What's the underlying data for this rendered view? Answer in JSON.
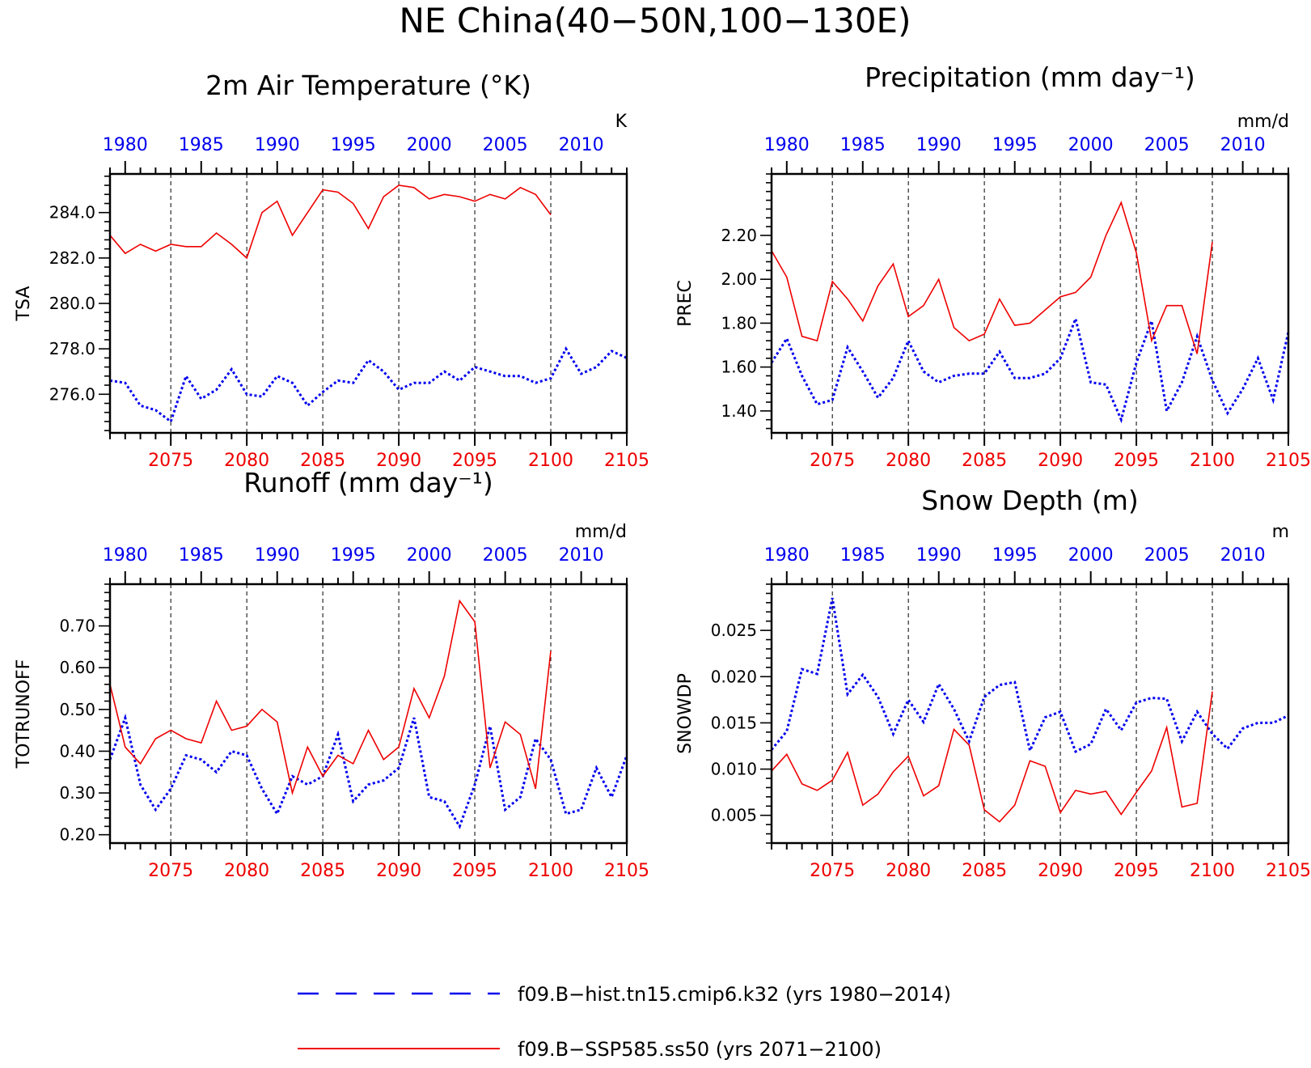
{
  "figure": {
    "title": "NE China(40−50N,100−130E)",
    "legend": {
      "placement": "bottom-center",
      "entries": [
        {
          "label": "f09.B−hist.tn15.cmip6.k32 (yrs 1980−2014)",
          "color": "#0000ee",
          "style": "dashed"
        },
        {
          "label": "f09.B−SSP585.ss50 (yrs 2071−2100)",
          "color": "#ee0000",
          "style": "solid"
        }
      ]
    }
  },
  "chart_data": [
    {
      "type": "line",
      "title": "2m Air Temperature (°K)",
      "ylabel": "TSA",
      "unit": "K",
      "ylim": [
        274.3,
        285.7
      ],
      "yticks": [
        276.0,
        278.0,
        280.0,
        282.0,
        284.0
      ],
      "ytick_labels": [
        "276.0",
        "278.0",
        "280.0",
        "282.0",
        "284.0"
      ],
      "grid": "vertical dashed at major bottom ticks",
      "top_axis": {
        "label_color": "#0000ee",
        "xlim": [
          1979,
          2013
        ],
        "ticks": [
          1980,
          1985,
          1990,
          1995,
          2000,
          2005,
          2010
        ]
      },
      "bottom_axis": {
        "label_color": "#ee0000",
        "xlim": [
          2071,
          2105
        ],
        "ticks": [
          2075,
          2080,
          2085,
          2090,
          2095,
          2100,
          2105
        ]
      },
      "series": [
        {
          "name": "f09.B−hist.tn15.cmip6.k32 (yrs 1980−2014)",
          "axis": "top",
          "color": "#0000ee",
          "style": "dotted",
          "x": [
            1979,
            1980,
            1981,
            1982,
            1983,
            1984,
            1985,
            1986,
            1987,
            1988,
            1989,
            1990,
            1991,
            1992,
            1993,
            1994,
            1995,
            1996,
            1997,
            1998,
            1999,
            2000,
            2001,
            2002,
            2003,
            2004,
            2005,
            2006,
            2007,
            2008,
            2009,
            2010,
            2011,
            2012,
            2013
          ],
          "y": [
            276.6,
            276.5,
            275.5,
            275.3,
            274.8,
            276.8,
            275.8,
            276.2,
            277.1,
            276.0,
            275.9,
            276.8,
            276.5,
            275.5,
            276.1,
            276.6,
            276.5,
            277.5,
            277.0,
            276.2,
            276.5,
            276.5,
            277.0,
            276.6,
            277.2,
            277.0,
            276.8,
            276.8,
            276.5,
            276.7,
            278.0,
            276.9,
            277.2,
            277.9,
            277.6
          ]
        },
        {
          "name": "f09.B−SSP585.ss50 (yrs 2071−2100)",
          "axis": "bottom",
          "color": "#ee0000",
          "style": "solid",
          "x": [
            2071,
            2072,
            2073,
            2074,
            2075,
            2076,
            2077,
            2078,
            2079,
            2080,
            2081,
            2082,
            2083,
            2084,
            2085,
            2086,
            2087,
            2088,
            2089,
            2090,
            2091,
            2092,
            2093,
            2094,
            2095,
            2096,
            2097,
            2098,
            2099,
            2100
          ],
          "y": [
            283.0,
            282.2,
            282.6,
            282.3,
            282.6,
            282.5,
            282.5,
            283.1,
            282.6,
            282.0,
            284.0,
            284.5,
            283.0,
            284.0,
            285.0,
            284.9,
            284.4,
            283.3,
            284.7,
            285.2,
            285.1,
            284.6,
            284.8,
            284.7,
            284.5,
            284.8,
            284.6,
            285.1,
            284.8,
            283.9
          ]
        }
      ]
    },
    {
      "type": "line",
      "title": "Precipitation (mm day⁻¹)",
      "ylabel": "PREC",
      "unit": "mm/d",
      "ylim": [
        1.3,
        2.48
      ],
      "yticks": [
        1.4,
        1.6,
        1.8,
        2.0,
        2.2
      ],
      "ytick_labels": [
        "1.40",
        "1.60",
        "1.80",
        "2.00",
        "2.20"
      ],
      "grid": "vertical dashed at major bottom ticks",
      "top_axis": {
        "label_color": "#0000ee",
        "xlim": [
          1979,
          2013
        ],
        "ticks": [
          1980,
          1985,
          1990,
          1995,
          2000,
          2005,
          2010
        ]
      },
      "bottom_axis": {
        "label_color": "#ee0000",
        "xlim": [
          2071,
          2105
        ],
        "ticks": [
          2075,
          2080,
          2085,
          2090,
          2095,
          2100,
          2105
        ]
      },
      "series": [
        {
          "name": "f09.B−hist.tn15.cmip6.k32 (yrs 1980−2014)",
          "axis": "top",
          "color": "#0000ee",
          "style": "dotted",
          "x": [
            1979,
            1980,
            1981,
            1982,
            1983,
            1984,
            1985,
            1986,
            1987,
            1988,
            1989,
            1990,
            1991,
            1992,
            1993,
            1994,
            1995,
            1996,
            1997,
            1998,
            1999,
            2000,
            2001,
            2002,
            2003,
            2004,
            2005,
            2006,
            2007,
            2008,
            2009,
            2010,
            2011,
            2012,
            2013
          ],
          "y": [
            1.62,
            1.73,
            1.56,
            1.43,
            1.45,
            1.69,
            1.58,
            1.46,
            1.55,
            1.72,
            1.58,
            1.53,
            1.56,
            1.57,
            1.57,
            1.67,
            1.55,
            1.55,
            1.57,
            1.64,
            1.82,
            1.53,
            1.52,
            1.36,
            1.62,
            1.81,
            1.4,
            1.53,
            1.74,
            1.54,
            1.39,
            1.5,
            1.64,
            1.45,
            1.76
          ]
        },
        {
          "name": "f09.B−SSP585.ss50 (yrs 2071−2100)",
          "axis": "bottom",
          "color": "#ee0000",
          "style": "solid",
          "x": [
            2071,
            2072,
            2073,
            2074,
            2075,
            2076,
            2077,
            2078,
            2079,
            2080,
            2081,
            2082,
            2083,
            2084,
            2085,
            2086,
            2087,
            2088,
            2089,
            2090,
            2091,
            2092,
            2093,
            2094,
            2095,
            2096,
            2097,
            2098,
            2099,
            2100
          ],
          "y": [
            2.13,
            2.01,
            1.74,
            1.72,
            1.99,
            1.91,
            1.81,
            1.97,
            2.07,
            1.83,
            1.88,
            2.0,
            1.78,
            1.72,
            1.75,
            1.91,
            1.79,
            1.8,
            1.86,
            1.92,
            1.94,
            2.01,
            2.2,
            2.35,
            2.12,
            1.72,
            1.88,
            1.88,
            1.66,
            2.17
          ]
        }
      ]
    },
    {
      "type": "line",
      "title": "Runoff (mm day⁻¹)",
      "ylabel": "TOTRUNOFF",
      "unit": "mm/d",
      "ylim": [
        0.18,
        0.8
      ],
      "yticks": [
        0.2,
        0.3,
        0.4,
        0.5,
        0.6,
        0.7
      ],
      "ytick_labels": [
        "0.20",
        "0.30",
        "0.40",
        "0.50",
        "0.60",
        "0.70"
      ],
      "grid": "vertical dashed at major bottom ticks",
      "top_axis": {
        "label_color": "#0000ee",
        "xlim": [
          1979,
          2013
        ],
        "ticks": [
          1980,
          1985,
          1990,
          1995,
          2000,
          2005,
          2010
        ]
      },
      "bottom_axis": {
        "label_color": "#ee0000",
        "xlim": [
          2071,
          2105
        ],
        "ticks": [
          2075,
          2080,
          2085,
          2090,
          2095,
          2100,
          2105
        ]
      },
      "series": [
        {
          "name": "f09.B−hist.tn15.cmip6.k32 (yrs 1980−2014)",
          "axis": "top",
          "color": "#0000ee",
          "style": "dotted",
          "x": [
            1979,
            1980,
            1981,
            1982,
            1983,
            1984,
            1985,
            1986,
            1987,
            1988,
            1989,
            1990,
            1991,
            1992,
            1993,
            1994,
            1995,
            1996,
            1997,
            1998,
            1999,
            2000,
            2001,
            2002,
            2003,
            2004,
            2005,
            2006,
            2007,
            2008,
            2009,
            2010,
            2011,
            2012,
            2013
          ],
          "y": [
            0.38,
            0.48,
            0.32,
            0.26,
            0.31,
            0.39,
            0.38,
            0.35,
            0.4,
            0.39,
            0.31,
            0.25,
            0.34,
            0.32,
            0.34,
            0.44,
            0.28,
            0.32,
            0.33,
            0.36,
            0.48,
            0.29,
            0.28,
            0.22,
            0.32,
            0.46,
            0.26,
            0.29,
            0.43,
            0.38,
            0.25,
            0.26,
            0.36,
            0.29,
            0.39
          ]
        },
        {
          "name": "f09.B−SSP585.ss50 (yrs 2071−2100)",
          "axis": "bottom",
          "color": "#ee0000",
          "style": "solid",
          "x": [
            2071,
            2072,
            2073,
            2074,
            2075,
            2076,
            2077,
            2078,
            2079,
            2080,
            2081,
            2082,
            2083,
            2084,
            2085,
            2086,
            2087,
            2088,
            2089,
            2090,
            2091,
            2092,
            2093,
            2094,
            2095,
            2096,
            2097,
            2098,
            2099,
            2100
          ],
          "y": [
            0.56,
            0.41,
            0.37,
            0.43,
            0.45,
            0.43,
            0.42,
            0.52,
            0.45,
            0.46,
            0.5,
            0.47,
            0.3,
            0.41,
            0.34,
            0.39,
            0.37,
            0.45,
            0.38,
            0.41,
            0.55,
            0.48,
            0.58,
            0.76,
            0.71,
            0.36,
            0.47,
            0.44,
            0.31,
            0.64
          ]
        }
      ]
    },
    {
      "type": "line",
      "title": "Snow Depth (m)",
      "ylabel": "SNOWDP",
      "unit": "m",
      "ylim": [
        0.002,
        0.03
      ],
      "yticks": [
        0.005,
        0.01,
        0.015,
        0.02,
        0.025
      ],
      "ytick_labels": [
        "0.005",
        "0.010",
        "0.015",
        "0.020",
        "0.025"
      ],
      "grid": "vertical dashed at major bottom ticks",
      "top_axis": {
        "label_color": "#0000ee",
        "xlim": [
          1979,
          2013
        ],
        "ticks": [
          1980,
          1985,
          1990,
          1995,
          2000,
          2005,
          2010
        ]
      },
      "bottom_axis": {
        "label_color": "#ee0000",
        "xlim": [
          2071,
          2105
        ],
        "ticks": [
          2075,
          2080,
          2085,
          2090,
          2095,
          2100,
          2105
        ]
      },
      "series": [
        {
          "name": "f09.B−hist.tn15.cmip6.k32 (yrs 1980−2014)",
          "axis": "top",
          "color": "#0000ee",
          "style": "dotted",
          "x": [
            1979,
            1980,
            1981,
            1982,
            1983,
            1984,
            1985,
            1986,
            1987,
            1988,
            1989,
            1990,
            1991,
            1992,
            1993,
            1994,
            1995,
            1996,
            1997,
            1998,
            1999,
            2000,
            2001,
            2002,
            2003,
            2004,
            2005,
            2006,
            2007,
            2008,
            2009,
            2010,
            2011,
            2012,
            2013
          ],
          "y": [
            0.0121,
            0.0141,
            0.0208,
            0.0203,
            0.0285,
            0.0181,
            0.0202,
            0.0178,
            0.0138,
            0.0175,
            0.0151,
            0.0192,
            0.0165,
            0.013,
            0.0178,
            0.0191,
            0.0194,
            0.012,
            0.0156,
            0.0162,
            0.0119,
            0.0127,
            0.0165,
            0.0142,
            0.0172,
            0.0177,
            0.0176,
            0.013,
            0.0162,
            0.0138,
            0.0122,
            0.0144,
            0.015,
            0.015,
            0.0158
          ]
        },
        {
          "name": "f09.B−SSP585.ss50 (yrs 2071−2100)",
          "axis": "bottom",
          "color": "#ee0000",
          "style": "solid",
          "x": [
            2071,
            2072,
            2073,
            2074,
            2075,
            2076,
            2077,
            2078,
            2079,
            2080,
            2081,
            2082,
            2083,
            2084,
            2085,
            2086,
            2087,
            2088,
            2089,
            2090,
            2091,
            2092,
            2093,
            2094,
            2095,
            2096,
            2097,
            2098,
            2099,
            2100
          ],
          "y": [
            0.0098,
            0.0116,
            0.0084,
            0.0077,
            0.0088,
            0.0118,
            0.0061,
            0.0073,
            0.0097,
            0.0114,
            0.0071,
            0.0082,
            0.0143,
            0.0126,
            0.0056,
            0.0043,
            0.0061,
            0.0109,
            0.0103,
            0.0053,
            0.0077,
            0.0073,
            0.0076,
            0.0051,
            0.0075,
            0.0098,
            0.0145,
            0.0059,
            0.0063,
            0.0184
          ]
        }
      ]
    }
  ]
}
